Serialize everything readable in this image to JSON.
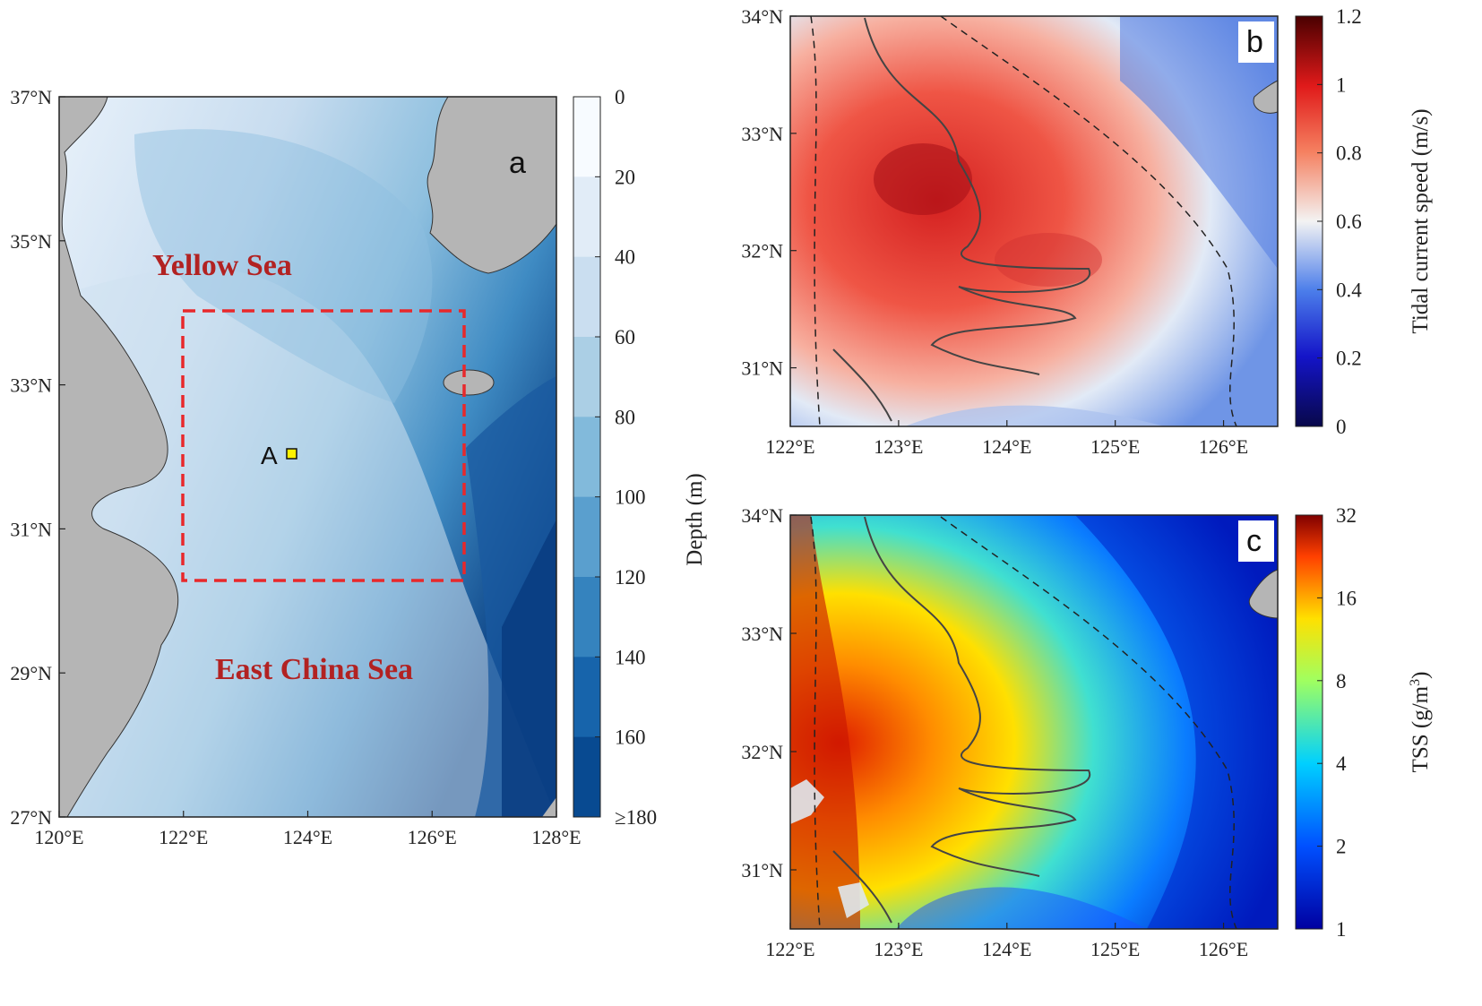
{
  "panels": {
    "a": {
      "letter": "a",
      "lon_ticks": [
        "120°E",
        "122°E",
        "124°E",
        "126°E",
        "128°E"
      ],
      "lat_ticks": [
        "37°N",
        "35°N",
        "33°N",
        "31°N",
        "29°N",
        "27°N"
      ],
      "sea_labels": {
        "yellow_sea": "Yellow Sea",
        "east_china_sea": "East China Sea"
      },
      "station": {
        "label": "A",
        "lon": 123.7,
        "lat": 32.3
      },
      "study_box": {
        "lon": [
          122,
          126.5
        ],
        "lat": [
          30.5,
          34
        ]
      },
      "colorbar": {
        "label": "Depth (m)",
        "ticks": [
          "0",
          "20",
          "40",
          "60",
          "80",
          "100",
          "120",
          "140",
          "160",
          "≥180"
        ],
        "colors": [
          "#f7fbff",
          "#e1ecf7",
          "#cadef0",
          "#abcfe5",
          "#82badb",
          "#5a9fce",
          "#3583be",
          "#1764ab",
          "#084a91"
        ]
      }
    },
    "b": {
      "letter": "b",
      "lon_ticks": [
        "122°E",
        "123°E",
        "124°E",
        "125°E",
        "126°E"
      ],
      "lat_ticks": [
        "34°N",
        "33°N",
        "32°N",
        "31°N"
      ],
      "colorbar": {
        "label": "Tidal current speed (m/s)",
        "ticks": [
          "0",
          "0.2",
          "0.4",
          "0.6",
          "0.8",
          "1",
          "1.2"
        ]
      }
    },
    "c": {
      "letter": "c",
      "lon_ticks": [
        "122°E",
        "123°E",
        "124°E",
        "125°E",
        "126°E"
      ],
      "lat_ticks": [
        "34°N",
        "33°N",
        "32°N",
        "31°N"
      ],
      "colorbar": {
        "label": "TSS (g/m³)",
        "label_main": "TSS (g/m",
        "label_sup": "3",
        "label_end": ")",
        "ticks": [
          "1",
          "2",
          "4",
          "8",
          "16",
          "32"
        ]
      }
    }
  },
  "colors": {
    "land": "#b5b5b5",
    "study_box": "#e8282b",
    "station_marker": "#fff200"
  }
}
